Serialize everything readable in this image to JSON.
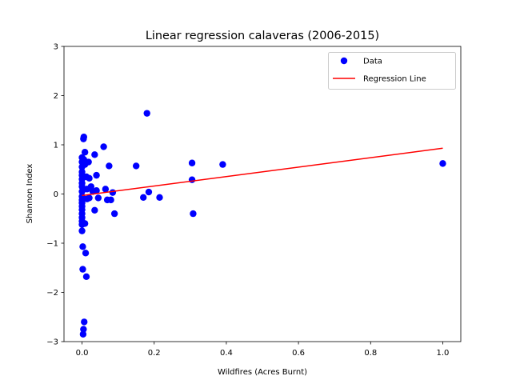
{
  "chart_data": {
    "type": "scatter",
    "title": "Linear regression calaveras (2006-2015)",
    "xlabel": "Wildfires (Acres Burnt)",
    "ylabel": "Shannon Index",
    "xlim": [
      -0.05,
      1.05
    ],
    "ylim": [
      -3,
      3
    ],
    "xticks": [
      0.0,
      0.2,
      0.4,
      0.6,
      0.8,
      1.0
    ],
    "xtick_labels": [
      "0.0",
      "0.2",
      "0.4",
      "0.6",
      "0.8",
      "1.0"
    ],
    "yticks": [
      -3,
      -2,
      -1,
      0,
      1,
      2,
      3
    ],
    "ytick_labels": [
      "−3",
      "−2",
      "−1",
      "0",
      "1",
      "2",
      "3"
    ],
    "grid": false,
    "legend_position": "top-right",
    "series": [
      {
        "name": "Data",
        "kind": "scatter",
        "color": "#0000ff",
        "points": [
          [
            0.0,
            0.74
          ],
          [
            0.0,
            0.65
          ],
          [
            0.0,
            0.55
          ],
          [
            0.0,
            0.45
          ],
          [
            0.0,
            0.38
          ],
          [
            0.0,
            0.3
          ],
          [
            0.0,
            0.22
          ],
          [
            0.0,
            0.15
          ],
          [
            0.0,
            0.05
          ],
          [
            0.0,
            -0.05
          ],
          [
            0.0,
            -0.12
          ],
          [
            0.0,
            -0.18
          ],
          [
            0.0,
            -0.25
          ],
          [
            0.0,
            -0.32
          ],
          [
            0.0,
            -0.4
          ],
          [
            0.0,
            -0.48
          ],
          [
            0.0,
            -0.55
          ],
          [
            0.0,
            -0.62
          ],
          [
            0.0,
            -0.75
          ],
          [
            0.002,
            -1.07
          ],
          [
            0.002,
            -1.53
          ],
          [
            0.003,
            -2.85
          ],
          [
            0.004,
            -2.75
          ],
          [
            0.004,
            1.12
          ],
          [
            0.005,
            1.16
          ],
          [
            0.005,
            0.7
          ],
          [
            0.006,
            -2.6
          ],
          [
            0.008,
            0.85
          ],
          [
            0.008,
            0.6
          ],
          [
            0.008,
            -0.6
          ],
          [
            0.01,
            -1.2
          ],
          [
            0.012,
            -1.68
          ],
          [
            0.012,
            0.35
          ],
          [
            0.014,
            0.1
          ],
          [
            0.014,
            -0.1
          ],
          [
            0.018,
            0.65
          ],
          [
            0.02,
            0.32
          ],
          [
            0.02,
            -0.08
          ],
          [
            0.025,
            0.15
          ],
          [
            0.03,
            0.05
          ],
          [
            0.035,
            0.8
          ],
          [
            0.035,
            -0.33
          ],
          [
            0.04,
            0.07
          ],
          [
            0.04,
            0.38
          ],
          [
            0.045,
            -0.08
          ],
          [
            0.06,
            0.96
          ],
          [
            0.065,
            0.1
          ],
          [
            0.07,
            -0.12
          ],
          [
            0.075,
            0.57
          ],
          [
            0.08,
            -0.12
          ],
          [
            0.085,
            0.03
          ],
          [
            0.09,
            -0.4
          ],
          [
            0.15,
            0.57
          ],
          [
            0.17,
            -0.07
          ],
          [
            0.18,
            1.64
          ],
          [
            0.185,
            0.04
          ],
          [
            0.215,
            -0.07
          ],
          [
            0.305,
            0.63
          ],
          [
            0.305,
            0.29
          ],
          [
            0.308,
            -0.4
          ],
          [
            0.39,
            0.6
          ],
          [
            1.0,
            0.62
          ]
        ]
      },
      {
        "name": "Regression Line",
        "kind": "line",
        "color": "#ff0000",
        "points": [
          [
            0.0,
            -0.03
          ],
          [
            1.0,
            0.93
          ]
        ]
      }
    ]
  }
}
